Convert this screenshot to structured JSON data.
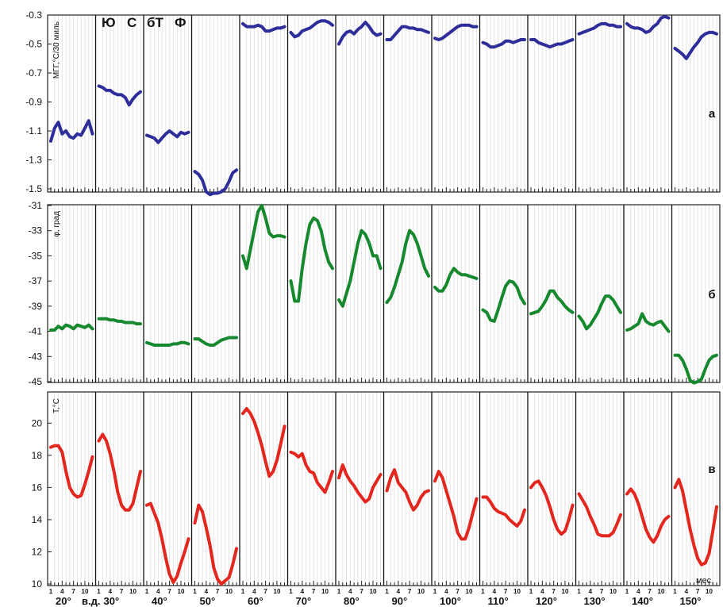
{
  "chart_data": {
    "type": "line",
    "months": [
      "1",
      "4",
      "7",
      "10"
    ],
    "longitude_labels": [
      "20°",
      "30°",
      "40°",
      "50°",
      "60°",
      "70°",
      "80°",
      "90°",
      "100°",
      "110°",
      "120°",
      "130°",
      "140°",
      "150°"
    ],
    "x_suffix": "в.д.",
    "x_unit": "мес.",
    "zones": [
      "Ю",
      "С",
      "бТ",
      "Ф"
    ],
    "panels": [
      {
        "panel_label": "а",
        "ylabel": "МГГ,°С/30 миль",
        "ylim": [
          -1.5,
          -0.3
        ],
        "yticks": [
          "-0.3",
          "-0.5",
          "-0.7",
          "-0.9",
          "-1.1",
          "-1.3",
          "-1.5"
        ],
        "color": "#2e2e9a",
        "segments": [
          [
            -1.17,
            -1.08,
            -1.04,
            -1.12,
            -1.1,
            -1.14,
            -1.15,
            -1.12,
            -1.13,
            -1.08,
            -1.03,
            -1.12
          ],
          [
            -0.79,
            -0.8,
            -0.82,
            -0.82,
            -0.84,
            -0.85,
            -0.85,
            -0.87,
            -0.92,
            -0.88,
            -0.85,
            -0.83
          ],
          [
            -1.13,
            -1.14,
            -1.15,
            -1.18,
            -1.15,
            -1.12,
            -1.1,
            -1.12,
            -1.14,
            -1.11,
            -1.12,
            -1.11
          ],
          [
            -1.38,
            -1.4,
            -1.44,
            -1.52,
            -1.54,
            -1.53,
            -1.53,
            -1.52,
            -1.5,
            -1.45,
            -1.39,
            -1.37
          ],
          [
            -0.36,
            -0.38,
            -0.38,
            -0.38,
            -0.37,
            -0.38,
            -0.41,
            -0.41,
            -0.4,
            -0.39,
            -0.39,
            -0.38
          ],
          [
            -0.42,
            -0.45,
            -0.44,
            -0.41,
            -0.4,
            -0.39,
            -0.37,
            -0.35,
            -0.34,
            -0.34,
            -0.35,
            -0.37
          ],
          [
            -0.5,
            -0.45,
            -0.42,
            -0.41,
            -0.43,
            -0.4,
            -0.38,
            -0.35,
            -0.38,
            -0.42,
            -0.44,
            -0.43
          ],
          [
            -0.47,
            -0.47,
            -0.44,
            -0.41,
            -0.38,
            -0.38,
            -0.39,
            -0.39,
            -0.4,
            -0.4,
            -0.41,
            -0.42
          ],
          [
            -0.46,
            -0.47,
            -0.46,
            -0.44,
            -0.42,
            -0.4,
            -0.38,
            -0.37,
            -0.37,
            -0.37,
            -0.38,
            -0.38
          ],
          [
            -0.49,
            -0.5,
            -0.52,
            -0.52,
            -0.51,
            -0.5,
            -0.48,
            -0.48,
            -0.49,
            -0.48,
            -0.47,
            -0.47
          ],
          [
            -0.47,
            -0.47,
            -0.49,
            -0.5,
            -0.51,
            -0.52,
            -0.51,
            -0.5,
            -0.5,
            -0.49,
            -0.48,
            -0.47
          ],
          [
            -0.43,
            -0.42,
            -0.41,
            -0.4,
            -0.39,
            -0.37,
            -0.36,
            -0.36,
            -0.37,
            -0.37,
            -0.38,
            -0.38
          ],
          [
            -0.36,
            -0.38,
            -0.39,
            -0.39,
            -0.4,
            -0.42,
            -0.41,
            -0.38,
            -0.36,
            -0.32,
            -0.31,
            -0.32
          ],
          [
            -0.53,
            -0.55,
            -0.57,
            -0.6,
            -0.56,
            -0.52,
            -0.49,
            -0.45,
            -0.43,
            -0.42,
            -0.42,
            -0.43
          ]
        ]
      },
      {
        "panel_label": "б",
        "ylabel": "φ, град",
        "ylim": [
          -45,
          -31
        ],
        "yticks": [
          "-31",
          "-33",
          "-35",
          "-37",
          "-39",
          "-41",
          "-43",
          "-45"
        ],
        "color": "#16892e",
        "segments": [
          [
            -40.9,
            -40.9,
            -40.6,
            -40.8,
            -40.5,
            -40.6,
            -40.8,
            -40.5,
            -40.6,
            -40.7,
            -40.5,
            -40.8
          ],
          [
            -40.0,
            -40.0,
            -40.0,
            -40.1,
            -40.1,
            -40.2,
            -40.2,
            -40.3,
            -40.3,
            -40.3,
            -40.4,
            -40.4
          ],
          [
            -41.9,
            -42.0,
            -42.1,
            -42.1,
            -42.1,
            -42.1,
            -42.1,
            -42.0,
            -42.0,
            -41.9,
            -41.9,
            -42.0
          ],
          [
            -41.6,
            -41.6,
            -41.8,
            -42.0,
            -42.1,
            -42.1,
            -41.9,
            -41.7,
            -41.6,
            -41.5,
            -41.5,
            -41.5
          ],
          [
            -35.0,
            -36.0,
            -34.5,
            -33.0,
            -31.5,
            -31.0,
            -32.0,
            -33.2,
            -33.5,
            -33.4,
            -33.4,
            -33.5
          ],
          [
            -37.0,
            -38.6,
            -38.6,
            -36.0,
            -34.0,
            -32.5,
            -32.0,
            -32.2,
            -33.0,
            -34.5,
            -35.5,
            -36.0
          ],
          [
            -38.5,
            -39.0,
            -38.0,
            -37.0,
            -35.5,
            -34.0,
            -33.0,
            -33.3,
            -34.0,
            -35.0,
            -35.0,
            -36.0
          ],
          [
            -38.7,
            -38.3,
            -37.5,
            -36.5,
            -35.5,
            -34.0,
            -33.0,
            -33.3,
            -34.0,
            -35.0,
            -36.0,
            -36.6
          ],
          [
            -37.5,
            -37.8,
            -37.8,
            -37.3,
            -36.5,
            -36.0,
            -36.3,
            -36.5,
            -36.5,
            -36.6,
            -36.7,
            -36.8
          ],
          [
            -39.3,
            -39.5,
            -40.1,
            -40.2,
            -39.3,
            -38.3,
            -37.4,
            -37.0,
            -37.1,
            -37.5,
            -38.3,
            -38.8
          ],
          [
            -39.6,
            -39.5,
            -39.4,
            -39.0,
            -38.5,
            -37.8,
            -37.8,
            -38.3,
            -38.6,
            -39.0,
            -39.3,
            -39.5
          ],
          [
            -39.8,
            -40.2,
            -40.8,
            -40.5,
            -40.0,
            -39.5,
            -38.8,
            -38.2,
            -38.2,
            -38.5,
            -39.0,
            -39.5
          ],
          [
            -40.9,
            -40.8,
            -40.6,
            -40.4,
            -39.6,
            -40.2,
            -40.4,
            -40.5,
            -40.3,
            -40.2,
            -40.6,
            -41.0
          ],
          [
            -42.9,
            -42.9,
            -43.3,
            -44.0,
            -44.9,
            -45.1,
            -45.0,
            -44.8,
            -44.0,
            -43.3,
            -43.0,
            -42.9
          ]
        ]
      },
      {
        "panel_label": "в",
        "ylabel": "Т,°С",
        "ylim": [
          10,
          21
        ],
        "yticks": [
          "20",
          "18",
          "16",
          "14",
          "12",
          "10"
        ],
        "color": "#e3261e",
        "segments": [
          [
            18.5,
            18.6,
            18.6,
            18.2,
            17.0,
            16.0,
            15.6,
            15.4,
            15.5,
            16.2,
            17.0,
            17.9
          ],
          [
            18.9,
            19.3,
            18.9,
            18.1,
            17.0,
            15.7,
            14.9,
            14.6,
            14.6,
            15.0,
            16.0,
            17.0
          ],
          [
            14.9,
            15.0,
            14.4,
            13.8,
            12.8,
            11.6,
            10.6,
            10.1,
            10.5,
            11.3,
            12.0,
            12.8
          ],
          [
            13.8,
            14.9,
            14.5,
            13.5,
            12.4,
            11.0,
            10.3,
            10.0,
            10.2,
            10.4,
            11.2,
            12.2
          ],
          [
            20.6,
            20.9,
            20.6,
            20.1,
            19.4,
            18.6,
            17.6,
            16.7,
            17.0,
            17.7,
            18.7,
            19.8
          ],
          [
            18.2,
            18.1,
            17.9,
            18.1,
            17.4,
            17.0,
            16.9,
            16.3,
            16.0,
            15.7,
            16.3,
            17.0
          ],
          [
            16.6,
            17.4,
            16.8,
            16.4,
            16.1,
            15.7,
            15.4,
            15.1,
            15.3,
            16.0,
            16.4,
            16.8
          ],
          [
            15.8,
            16.6,
            17.1,
            16.3,
            16.0,
            15.7,
            15.1,
            14.6,
            14.9,
            15.4,
            15.7,
            15.8
          ],
          [
            16.4,
            17.0,
            16.6,
            15.8,
            15.0,
            14.2,
            13.2,
            12.8,
            12.8,
            13.5,
            14.4,
            15.3
          ],
          [
            15.4,
            15.4,
            15.1,
            14.7,
            14.5,
            14.4,
            14.3,
            14.0,
            13.8,
            13.6,
            13.9,
            14.6
          ],
          [
            16.0,
            16.3,
            16.4,
            16.0,
            15.5,
            14.8,
            14.0,
            13.4,
            13.1,
            13.3,
            14.0,
            14.9
          ],
          [
            15.6,
            15.2,
            14.8,
            14.2,
            13.7,
            13.1,
            13.0,
            13.0,
            13.0,
            13.2,
            13.7,
            14.3
          ],
          [
            15.6,
            15.9,
            15.6,
            15.0,
            14.2,
            13.4,
            12.9,
            12.6,
            13.0,
            13.6,
            14.0,
            14.2
          ],
          [
            16.0,
            16.5,
            15.8,
            14.6,
            13.4,
            12.4,
            11.6,
            11.2,
            11.3,
            11.9,
            13.3,
            14.8
          ]
        ]
      }
    ]
  }
}
